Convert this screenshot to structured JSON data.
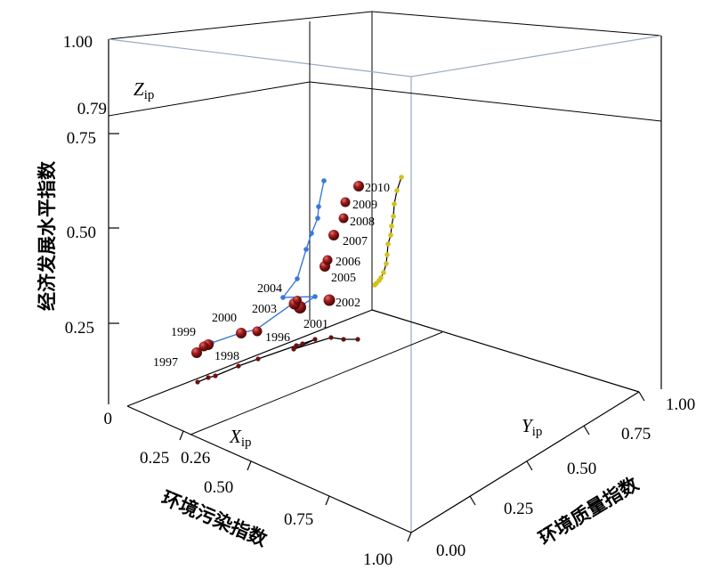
{
  "chart_data": {
    "type": "scatter",
    "title": "",
    "z_axis": {
      "label": "经济发展水平指数",
      "ticks": [
        "0",
        "0.25",
        "0.50",
        "0.75",
        "1.00"
      ],
      "marker_tick": "0.79",
      "marker_var": "Z",
      "marker_sub": "ip"
    },
    "x_axis": {
      "label": "环境污染指数",
      "ticks": [
        "0.25",
        "0.50",
        "0.75",
        "1.00"
      ],
      "marker_tick": "0.26",
      "marker_var": "X",
      "marker_sub": "ip"
    },
    "y_axis": {
      "label": "环境质量指数",
      "ticks": [
        "0.00",
        "0.25",
        "0.50",
        "0.75",
        "1.00"
      ],
      "marker_var": "Y",
      "marker_sub": "ip"
    },
    "year_labels": [
      "1996",
      "1997",
      "1998",
      "1999",
      "2000",
      "2001",
      "2002",
      "2003",
      "2004",
      "2005",
      "2006",
      "2007",
      "2008",
      "2009",
      "2010"
    ],
    "series": [
      {
        "color": "#7a1212",
        "kind": "main-3d-trajectory"
      },
      {
        "color": "#3d78d8",
        "kind": "projection-xz"
      },
      {
        "color": "#d2c21c",
        "kind": "projection-yz"
      },
      {
        "color": "#6b1010",
        "kind": "projection-xy"
      }
    ]
  }
}
